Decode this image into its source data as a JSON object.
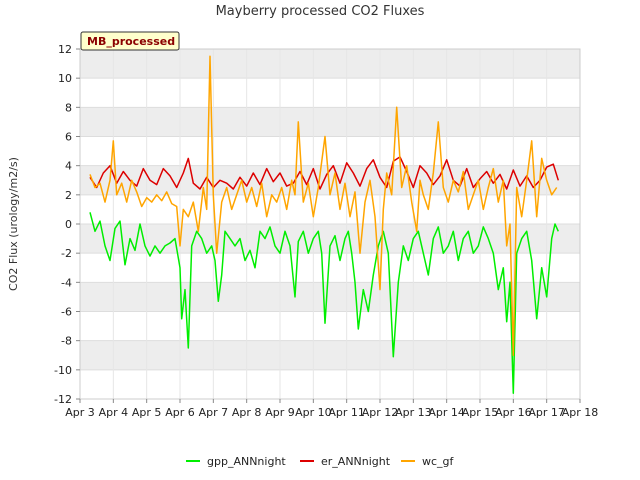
{
  "chart_data": {
    "type": "line",
    "title": "Mayberry processed CO2 Fluxes",
    "ylabel": "CO2 Flux (urology/m2/s)",
    "xlabel": "",
    "badge": "MB_processed",
    "x_range": [
      0,
      15
    ],
    "ylim": [
      -12,
      12
    ],
    "y_ticks": [
      -12,
      -10,
      -8,
      -6,
      -4,
      -2,
      0,
      2,
      4,
      6,
      8,
      10,
      12
    ],
    "x_tick_labels": [
      "Apr 3",
      "Apr 4",
      "Apr 5",
      "Apr 6",
      "Apr 7",
      "Apr 8",
      "Apr 9",
      "Apr 10",
      "Apr 11",
      "Apr 12",
      "Apr 13",
      "Apr 14",
      "Apr 15",
      "Apr 16",
      "Apr 17",
      "Apr 18"
    ],
    "band_color": "#ededed",
    "series": [
      {
        "name": "gpp_ANNnight",
        "color": "#00ee00",
        "x": [
          0.3,
          0.45,
          0.6,
          0.75,
          0.9,
          1.05,
          1.2,
          1.35,
          1.5,
          1.65,
          1.8,
          1.95,
          2.1,
          2.25,
          2.4,
          2.55,
          2.7,
          2.85,
          3.0,
          3.05,
          3.15,
          3.25,
          3.35,
          3.5,
          3.65,
          3.8,
          3.95,
          4.05,
          4.15,
          4.25,
          4.35,
          4.5,
          4.65,
          4.8,
          4.95,
          5.1,
          5.25,
          5.4,
          5.55,
          5.7,
          5.85,
          6.0,
          6.15,
          6.3,
          6.45,
          6.55,
          6.7,
          6.85,
          7.0,
          7.15,
          7.25,
          7.35,
          7.5,
          7.65,
          7.8,
          7.95,
          8.05,
          8.15,
          8.25,
          8.35,
          8.5,
          8.65,
          8.8,
          8.95,
          9.1,
          9.25,
          9.4,
          9.55,
          9.7,
          9.85,
          10.0,
          10.15,
          10.3,
          10.45,
          10.6,
          10.75,
          10.9,
          11.05,
          11.2,
          11.35,
          11.5,
          11.65,
          11.8,
          11.95,
          12.1,
          12.25,
          12.4,
          12.55,
          12.7,
          12.8,
          12.9,
          13.0,
          13.1,
          13.25,
          13.4,
          13.55,
          13.7,
          13.85,
          14.0,
          14.15,
          14.25,
          14.35
        ],
        "values": [
          0.8,
          -0.5,
          0.2,
          -1.5,
          -2.5,
          -0.3,
          0.2,
          -2.8,
          -1.0,
          -1.8,
          0.0,
          -1.5,
          -2.2,
          -1.5,
          -2.0,
          -1.5,
          -1.3,
          -1.0,
          -3.0,
          -6.5,
          -4.5,
          -8.5,
          -1.5,
          -0.5,
          -1.0,
          -2.0,
          -1.5,
          -2.5,
          -5.3,
          -3.5,
          -0.5,
          -1.0,
          -1.5,
          -1.0,
          -2.5,
          -1.8,
          -3.0,
          -0.5,
          -1.0,
          -0.2,
          -1.5,
          -2.0,
          -0.5,
          -1.5,
          -5.0,
          -1.2,
          -0.5,
          -2.0,
          -1.0,
          -0.5,
          -2.0,
          -6.8,
          -1.5,
          -0.8,
          -2.5,
          -1.0,
          -0.5,
          -2.0,
          -4.0,
          -7.2,
          -4.5,
          -6.0,
          -3.5,
          -1.5,
          -0.5,
          -2.0,
          -9.1,
          -4.0,
          -1.5,
          -2.5,
          -1.0,
          -0.5,
          -2.0,
          -3.5,
          -1.0,
          -0.2,
          -2.0,
          -1.5,
          -0.5,
          -2.5,
          -1.0,
          -0.5,
          -2.0,
          -1.5,
          -0.2,
          -1.0,
          -2.0,
          -4.5,
          -3.0,
          -6.7,
          -4.0,
          -11.6,
          -2.0,
          -1.0,
          -0.5,
          -2.5,
          -6.5,
          -3.0,
          -5.0,
          -1.0,
          0.0,
          -0.5
        ]
      },
      {
        "name": "er_ANNnight",
        "color": "#dd0000",
        "x": [
          0.3,
          0.5,
          0.7,
          0.9,
          1.1,
          1.3,
          1.5,
          1.7,
          1.9,
          2.1,
          2.3,
          2.5,
          2.7,
          2.9,
          3.1,
          3.25,
          3.4,
          3.6,
          3.8,
          4.0,
          4.2,
          4.4,
          4.6,
          4.8,
          5.0,
          5.2,
          5.4,
          5.6,
          5.8,
          6.0,
          6.2,
          6.4,
          6.6,
          6.8,
          7.0,
          7.2,
          7.4,
          7.6,
          7.8,
          8.0,
          8.2,
          8.4,
          8.6,
          8.8,
          9.0,
          9.2,
          9.4,
          9.6,
          9.8,
          10.0,
          10.2,
          10.4,
          10.6,
          10.8,
          11.0,
          11.2,
          11.4,
          11.6,
          11.8,
          12.0,
          12.2,
          12.4,
          12.6,
          12.8,
          13.0,
          13.2,
          13.4,
          13.6,
          13.8,
          14.0,
          14.2,
          14.35
        ],
        "values": [
          3.2,
          2.5,
          3.5,
          4.0,
          2.8,
          3.6,
          3.0,
          2.6,
          3.8,
          3.0,
          2.7,
          3.8,
          3.3,
          2.5,
          3.5,
          4.5,
          2.8,
          2.4,
          3.2,
          2.5,
          3.0,
          2.8,
          2.4,
          3.2,
          2.6,
          3.5,
          2.7,
          3.8,
          2.9,
          3.5,
          2.6,
          2.8,
          3.6,
          2.7,
          3.8,
          2.4,
          3.4,
          4.0,
          2.8,
          4.2,
          3.5,
          2.6,
          3.8,
          4.4,
          3.2,
          2.5,
          4.3,
          4.6,
          3.6,
          2.5,
          4.0,
          3.5,
          2.7,
          3.3,
          4.4,
          3.0,
          2.6,
          3.8,
          2.5,
          3.1,
          3.6,
          2.8,
          3.4,
          2.4,
          3.7,
          2.6,
          3.3,
          2.5,
          3.0,
          3.9,
          4.1,
          3.0
        ]
      },
      {
        "name": "wc_gf",
        "color": "#ffa500",
        "x": [
          0.3,
          0.45,
          0.6,
          0.75,
          0.9,
          1.0,
          1.1,
          1.25,
          1.4,
          1.55,
          1.7,
          1.85,
          2.0,
          2.15,
          2.3,
          2.45,
          2.6,
          2.75,
          2.9,
          3.0,
          3.1,
          3.25,
          3.4,
          3.55,
          3.7,
          3.8,
          3.9,
          4.0,
          4.1,
          4.25,
          4.4,
          4.55,
          4.7,
          4.85,
          5.0,
          5.15,
          5.3,
          5.45,
          5.6,
          5.75,
          5.9,
          6.05,
          6.2,
          6.35,
          6.45,
          6.55,
          6.7,
          6.85,
          7.0,
          7.15,
          7.35,
          7.5,
          7.65,
          7.8,
          7.95,
          8.1,
          8.25,
          8.4,
          8.55,
          8.7,
          8.85,
          9.0,
          9.1,
          9.2,
          9.35,
          9.5,
          9.65,
          9.8,
          9.95,
          10.1,
          10.2,
          10.3,
          10.45,
          10.6,
          10.75,
          10.9,
          11.05,
          11.2,
          11.35,
          11.5,
          11.65,
          11.8,
          11.95,
          12.1,
          12.25,
          12.4,
          12.55,
          12.7,
          12.8,
          12.9,
          13.0,
          13.1,
          13.25,
          13.4,
          13.55,
          13.7,
          13.85,
          14.0,
          14.15,
          14.3
        ],
        "values": [
          3.4,
          2.5,
          2.8,
          1.5,
          3.0,
          5.7,
          2.0,
          2.8,
          1.5,
          3.0,
          2.2,
          1.2,
          1.8,
          1.5,
          2.0,
          1.6,
          2.2,
          1.4,
          1.2,
          -1.5,
          1.0,
          0.5,
          1.5,
          -0.5,
          2.5,
          1.0,
          11.5,
          2.0,
          -2.0,
          1.5,
          2.5,
          1.0,
          2.0,
          3.0,
          1.5,
          2.5,
          1.2,
          2.8,
          0.5,
          2.0,
          1.5,
          2.5,
          1.0,
          3.0,
          2.0,
          7.0,
          1.5,
          2.8,
          0.5,
          2.5,
          6.0,
          2.0,
          3.5,
          1.0,
          2.8,
          0.5,
          2.2,
          -2.0,
          1.5,
          3.0,
          0.5,
          -4.5,
          1.0,
          3.5,
          2.0,
          8.0,
          2.5,
          4.0,
          1.5,
          -0.5,
          3.0,
          2.0,
          1.0,
          3.5,
          7.0,
          2.5,
          1.5,
          3.0,
          2.2,
          3.6,
          1.0,
          2.0,
          3.0,
          1.0,
          2.5,
          3.8,
          1.5,
          3.0,
          -1.5,
          0.0,
          -9.0,
          2.5,
          0.5,
          3.0,
          5.7,
          0.5,
          4.5,
          3.0,
          2.0,
          2.5
        ]
      }
    ]
  }
}
